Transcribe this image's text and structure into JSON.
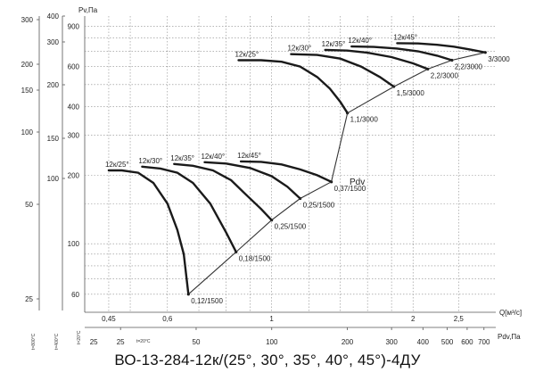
{
  "chart_data": {
    "type": "line",
    "title": "ВО-13-284-12к/(25°, 30°, 35°, 40°, 45°)-4ДУ",
    "ylabel": "Pv,Па",
    "x_flow_label": "Q[м³/с]",
    "x_pdv_label": "Pdv,Па",
    "system_line_label": "Pdv",
    "temp_labels": [
      "t=800°C",
      "t=400°C",
      "t=20°C",
      "t=20°C"
    ],
    "left_scale_800": [
      "300",
      "200",
      "150",
      "100",
      "50",
      "25"
    ],
    "left_scale_400": [
      "400",
      "300",
      "200",
      "150",
      "100"
    ],
    "pv_ticks": [
      "900",
      "600",
      "400",
      "300",
      "200",
      "100",
      "60"
    ],
    "pv_grid": [
      900,
      800,
      700,
      600,
      500,
      400,
      300,
      200,
      150,
      100,
      90,
      80,
      70,
      60
    ],
    "q_ticks": [
      "0,45",
      "0,6",
      "1",
      "2",
      "2,5"
    ],
    "q_grid": [
      0.45,
      0.5,
      0.6,
      0.7,
      0.8,
      0.9,
      1.0,
      1.2,
      1.4,
      1.6,
      1.8,
      2.0,
      2.5
    ],
    "pdv_ticks": [
      "25",
      "50",
      "100",
      "200",
      "300",
      "400",
      "500",
      "600",
      "700"
    ],
    "pdv_ticks_t20": [
      "25"
    ],
    "series": [
      {
        "group": "small",
        "name": "12к/25°",
        "motor": "0,12/1500",
        "points": [
          [
            0.45,
            210
          ],
          [
            0.48,
            210
          ],
          [
            0.52,
            205
          ],
          [
            0.56,
            185
          ],
          [
            0.6,
            150
          ],
          [
            0.63,
            115
          ],
          [
            0.65,
            90
          ],
          [
            0.665,
            60
          ]
        ]
      },
      {
        "group": "small",
        "name": "12к/30°",
        "motor": "0,18/1500",
        "points": [
          [
            0.53,
            218
          ],
          [
            0.58,
            214
          ],
          [
            0.63,
            205
          ],
          [
            0.68,
            185
          ],
          [
            0.74,
            150
          ],
          [
            0.8,
            112
          ],
          [
            0.84,
            92
          ]
        ]
      },
      {
        "group": "small",
        "name": "12к/35°",
        "motor": "0,25/1500",
        "points": [
          [
            0.62,
            224
          ],
          [
            0.68,
            220
          ],
          [
            0.75,
            210
          ],
          [
            0.82,
            190
          ],
          [
            0.88,
            165
          ],
          [
            0.95,
            142
          ],
          [
            1.0,
            127
          ]
        ]
      },
      {
        "group": "small",
        "name": "12к/40°",
        "motor": "0,25/1500",
        "points": [
          [
            0.72,
            228
          ],
          [
            0.8,
            225
          ],
          [
            0.9,
            215
          ],
          [
            1.0,
            198
          ],
          [
            1.08,
            178
          ],
          [
            1.15,
            158
          ]
        ]
      },
      {
        "group": "small",
        "name": "12к/45°",
        "motor": "0,37/1500",
        "points": [
          [
            0.86,
            230
          ],
          [
            0.95,
            229
          ],
          [
            1.05,
            223
          ],
          [
            1.15,
            212
          ],
          [
            1.25,
            200
          ],
          [
            1.34,
            187
          ]
        ]
      },
      {
        "group": "large",
        "name": "12к/25°",
        "motor": "1,1/3000",
        "points": [
          [
            0.85,
            640
          ],
          [
            0.95,
            640
          ],
          [
            1.05,
            630
          ],
          [
            1.15,
            600
          ],
          [
            1.25,
            540
          ],
          [
            1.33,
            480
          ],
          [
            1.4,
            420
          ],
          [
            1.45,
            375
          ]
        ]
      },
      {
        "group": "large",
        "name": "12к/30°",
        "motor": "1,5/3000",
        "points": [
          [
            1.1,
            680
          ],
          [
            1.25,
            675
          ],
          [
            1.4,
            650
          ],
          [
            1.55,
            600
          ],
          [
            1.7,
            540
          ],
          [
            1.82,
            490
          ]
        ]
      },
      {
        "group": "large",
        "name": "12к/35°",
        "motor": "2,2/3000",
        "points": [
          [
            1.3,
            710
          ],
          [
            1.45,
            705
          ],
          [
            1.6,
            690
          ],
          [
            1.8,
            660
          ],
          [
            2.0,
            620
          ],
          [
            2.15,
            585
          ]
        ]
      },
      {
        "group": "large",
        "name": "12к/40°",
        "motor": "2,2/3000",
        "points": [
          [
            1.48,
            735
          ],
          [
            1.65,
            732
          ],
          [
            1.85,
            720
          ],
          [
            2.05,
            700
          ],
          [
            2.25,
            670
          ],
          [
            2.42,
            640
          ]
        ]
      },
      {
        "group": "large",
        "name": "12к/45°",
        "motor": "3/3000",
        "points": [
          [
            1.85,
            760
          ],
          [
            2.05,
            758
          ],
          [
            2.25,
            748
          ],
          [
            2.45,
            733
          ],
          [
            2.65,
            712
          ],
          [
            2.85,
            692
          ]
        ]
      }
    ],
    "system_line": [
      [
        0.665,
        60
      ],
      [
        0.84,
        92
      ],
      [
        1.0,
        127
      ],
      [
        1.15,
        158
      ],
      [
        1.34,
        187
      ],
      [
        1.45,
        375
      ],
      [
        1.82,
        490
      ],
      [
        2.15,
        585
      ],
      [
        2.42,
        640
      ],
      [
        2.85,
        692
      ]
    ],
    "xlim_q": [
      0.4,
      3.0
    ],
    "ylim_pv": [
      50,
      1000
    ],
    "xscale": "log",
    "yscale": "log",
    "grid": true
  }
}
